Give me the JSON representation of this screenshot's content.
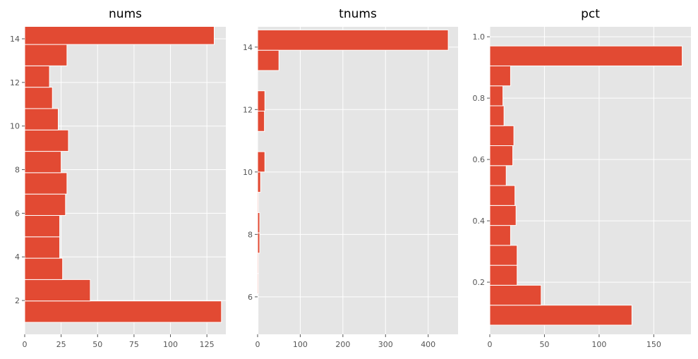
{
  "chart_data": [
    {
      "type": "bar",
      "orientation": "horizontal",
      "title": "nums",
      "grid": true,
      "xlim": [
        0,
        138
      ],
      "ylim": [
        0.45,
        14.55
      ],
      "xticks": [
        0,
        25,
        50,
        75,
        100,
        125
      ],
      "yticks": [
        2,
        4,
        6,
        8,
        10,
        12,
        14
      ],
      "bar_color": "#e24a33",
      "bars": [
        {
          "y0": 1.0,
          "y1": 1.98,
          "value": 135
        },
        {
          "y0": 1.98,
          "y1": 2.96,
          "value": 45
        },
        {
          "y0": 2.96,
          "y1": 3.94,
          "value": 26
        },
        {
          "y0": 3.94,
          "y1": 4.92,
          "value": 24
        },
        {
          "y0": 4.92,
          "y1": 5.9,
          "value": 24
        },
        {
          "y0": 5.9,
          "y1": 6.88,
          "value": 28
        },
        {
          "y0": 6.88,
          "y1": 7.86,
          "value": 29
        },
        {
          "y0": 7.86,
          "y1": 8.84,
          "value": 25
        },
        {
          "y0": 8.84,
          "y1": 9.82,
          "value": 30
        },
        {
          "y0": 9.82,
          "y1": 10.8,
          "value": 23
        },
        {
          "y0": 10.8,
          "y1": 11.78,
          "value": 19
        },
        {
          "y0": 11.78,
          "y1": 12.76,
          "value": 17
        },
        {
          "y0": 12.76,
          "y1": 13.74,
          "value": 29
        },
        {
          "y0": 13.74,
          "y1": 14.72,
          "value": 130
        }
      ]
    },
    {
      "type": "bar",
      "orientation": "horizontal",
      "title": "tnums",
      "grid": true,
      "xlim": [
        0,
        470
      ],
      "ylim": [
        4.8,
        14.65
      ],
      "xticks": [
        0,
        100,
        200,
        300,
        400
      ],
      "yticks": [
        6,
        8,
        10,
        12,
        14
      ],
      "bar_color": "#e24a33",
      "bars": [
        {
          "y0": 4.8,
          "y1": 5.45,
          "value": 1
        },
        {
          "y0": 5.45,
          "y1": 6.1,
          "value": 1
        },
        {
          "y0": 6.1,
          "y1": 6.75,
          "value": 2
        },
        {
          "y0": 6.75,
          "y1": 7.4,
          "value": 2
        },
        {
          "y0": 7.4,
          "y1": 8.05,
          "value": 5
        },
        {
          "y0": 8.05,
          "y1": 8.7,
          "value": 5
        },
        {
          "y0": 8.7,
          "y1": 9.35,
          "value": 2
        },
        {
          "y0": 9.35,
          "y1": 10.0,
          "value": 7
        },
        {
          "y0": 10.0,
          "y1": 10.65,
          "value": 17
        },
        {
          "y0": 10.65,
          "y1": 11.3,
          "value": 0
        },
        {
          "y0": 11.3,
          "y1": 11.95,
          "value": 16
        },
        {
          "y0": 11.95,
          "y1": 12.6,
          "value": 17
        },
        {
          "y0": 12.6,
          "y1": 13.25,
          "value": 0
        },
        {
          "y0": 13.25,
          "y1": 13.9,
          "value": 50
        },
        {
          "y0": 13.9,
          "y1": 14.55,
          "value": 447
        }
      ]
    },
    {
      "type": "bar",
      "orientation": "horizontal",
      "title": "pct",
      "grid": true,
      "xlim": [
        0,
        184
      ],
      "ylim": [
        0.03,
        1.0325
      ],
      "xticks": [
        0,
        50,
        100,
        150
      ],
      "yticks": [
        0.2,
        0.4,
        0.6,
        0.8,
        1.0
      ],
      "bar_color": "#e24a33",
      "bars": [
        {
          "y0": 0.06,
          "y1": 0.125,
          "value": 130
        },
        {
          "y0": 0.125,
          "y1": 0.19,
          "value": 47
        },
        {
          "y0": 0.19,
          "y1": 0.255,
          "value": 25
        },
        {
          "y0": 0.255,
          "y1": 0.32,
          "value": 25
        },
        {
          "y0": 0.32,
          "y1": 0.385,
          "value": 19
        },
        {
          "y0": 0.385,
          "y1": 0.45,
          "value": 24
        },
        {
          "y0": 0.45,
          "y1": 0.515,
          "value": 23
        },
        {
          "y0": 0.515,
          "y1": 0.58,
          "value": 15
        },
        {
          "y0": 0.58,
          "y1": 0.645,
          "value": 21
        },
        {
          "y0": 0.645,
          "y1": 0.71,
          "value": 22
        },
        {
          "y0": 0.71,
          "y1": 0.775,
          "value": 13
        },
        {
          "y0": 0.775,
          "y1": 0.84,
          "value": 12
        },
        {
          "y0": 0.84,
          "y1": 0.905,
          "value": 19
        },
        {
          "y0": 0.905,
          "y1": 0.97,
          "value": 176
        }
      ]
    }
  ]
}
